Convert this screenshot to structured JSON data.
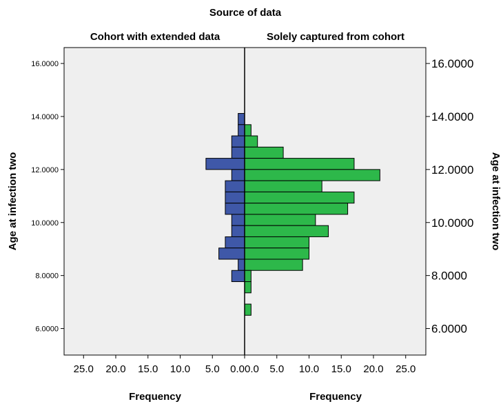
{
  "chart_data": {
    "type": "bar",
    "title": "Source of data",
    "orientation": "horizontal-back-to-back",
    "y_axis": {
      "label": "Age at infection two",
      "range": [
        5.0,
        16.6
      ],
      "ticks": [
        6,
        8,
        10,
        12,
        14,
        16
      ],
      "tick_labels_left": [
        "6.0000",
        "8.0000",
        "10.0000",
        "12.0000",
        "14.0000",
        "16.0000"
      ],
      "tick_labels_right": [
        "6.0000",
        "8.0000",
        "10.0000",
        "12.0000",
        "14.0000",
        "16.0000"
      ]
    },
    "x_axis": {
      "label_left": "Frequency",
      "label_right": "Frequency",
      "range": [
        0,
        28
      ],
      "ticks": [
        0,
        5,
        10,
        15,
        20,
        25
      ],
      "tick_labels": [
        "0.0",
        "5.0",
        "10.0",
        "15.0",
        "20.0",
        "25.0"
      ]
    },
    "bin_width": 0.4231,
    "series": [
      {
        "name": "Cohort with extended data",
        "side": "left",
        "color": "#3f58a8",
        "bins": [
          {
            "start": 13.6923,
            "value": 1
          },
          {
            "start": 13.2692,
            "value": 1
          },
          {
            "start": 12.8462,
            "value": 2
          },
          {
            "start": 12.4231,
            "value": 2
          },
          {
            "start": 12.0,
            "value": 6
          },
          {
            "start": 11.5769,
            "value": 2
          },
          {
            "start": 11.1538,
            "value": 3
          },
          {
            "start": 10.7308,
            "value": 3
          },
          {
            "start": 10.3077,
            "value": 3
          },
          {
            "start": 9.8846,
            "value": 2
          },
          {
            "start": 9.4615,
            "value": 2
          },
          {
            "start": 9.0385,
            "value": 3
          },
          {
            "start": 8.6154,
            "value": 4
          },
          {
            "start": 8.1923,
            "value": 1
          },
          {
            "start": 7.7692,
            "value": 2
          }
        ]
      },
      {
        "name": "Solely captured from cohort",
        "side": "right",
        "color": "#2db84a",
        "bins": [
          {
            "start": 13.2692,
            "value": 1
          },
          {
            "start": 12.8462,
            "value": 2
          },
          {
            "start": 12.4231,
            "value": 6
          },
          {
            "start": 12.0,
            "value": 17
          },
          {
            "start": 11.5769,
            "value": 21
          },
          {
            "start": 11.1538,
            "value": 12
          },
          {
            "start": 10.7308,
            "value": 17
          },
          {
            "start": 10.3077,
            "value": 16
          },
          {
            "start": 9.8846,
            "value": 11
          },
          {
            "start": 9.4615,
            "value": 13
          },
          {
            "start": 9.0385,
            "value": 10
          },
          {
            "start": 8.6154,
            "value": 10
          },
          {
            "start": 8.1923,
            "value": 9
          },
          {
            "start": 7.7692,
            "value": 1
          },
          {
            "start": 7.3462,
            "value": 1
          },
          {
            "start": 6.5,
            "value": 1
          }
        ]
      }
    ],
    "background": "#efefef",
    "grid": false,
    "legend": "none"
  }
}
